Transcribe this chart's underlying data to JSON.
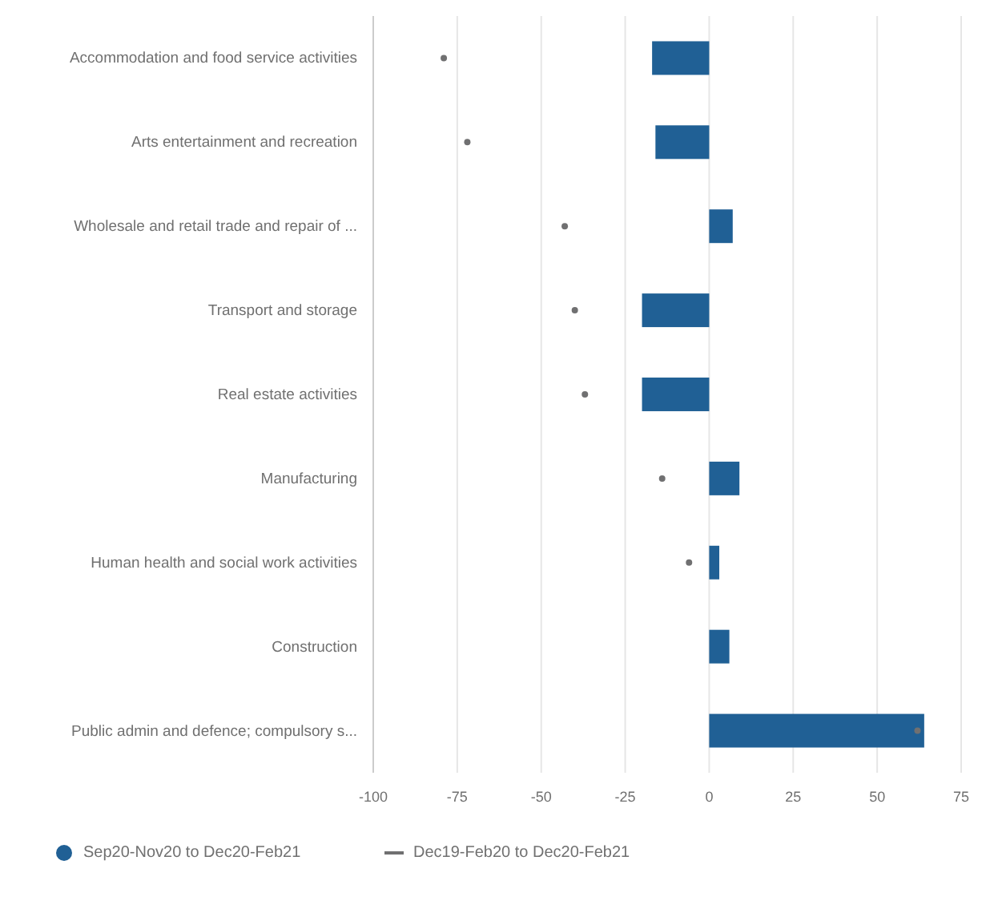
{
  "chart_data": {
    "type": "bar",
    "orientation": "horizontal",
    "categories": [
      "Accommodation and food service activities",
      "Arts entertainment and recreation",
      "Wholesale and retail trade and repair of ...",
      "Transport and storage",
      "Real estate activities",
      "Manufacturing",
      "Human health and social work activities",
      "Construction",
      "Public admin and defence; compulsory s..."
    ],
    "series": [
      {
        "name": "Sep20-Nov20 to Dec20-Feb21",
        "color": "#206095",
        "values": [
          -17,
          -16,
          7,
          -20,
          -20,
          9,
          3,
          6,
          64
        ]
      },
      {
        "name": "Dec19-Feb20 to Dec20-Feb21",
        "type": "scatter",
        "marker": "circle",
        "color": "#707071",
        "values": [
          -79,
          -72,
          -43,
          -40,
          -37,
          -14,
          -6,
          null,
          62
        ]
      }
    ],
    "xlim": [
      -100,
      75
    ],
    "xticks": [
      -100,
      -75,
      -50,
      -25,
      0,
      25,
      50,
      75
    ],
    "grid": "x",
    "legend": "bottom"
  }
}
